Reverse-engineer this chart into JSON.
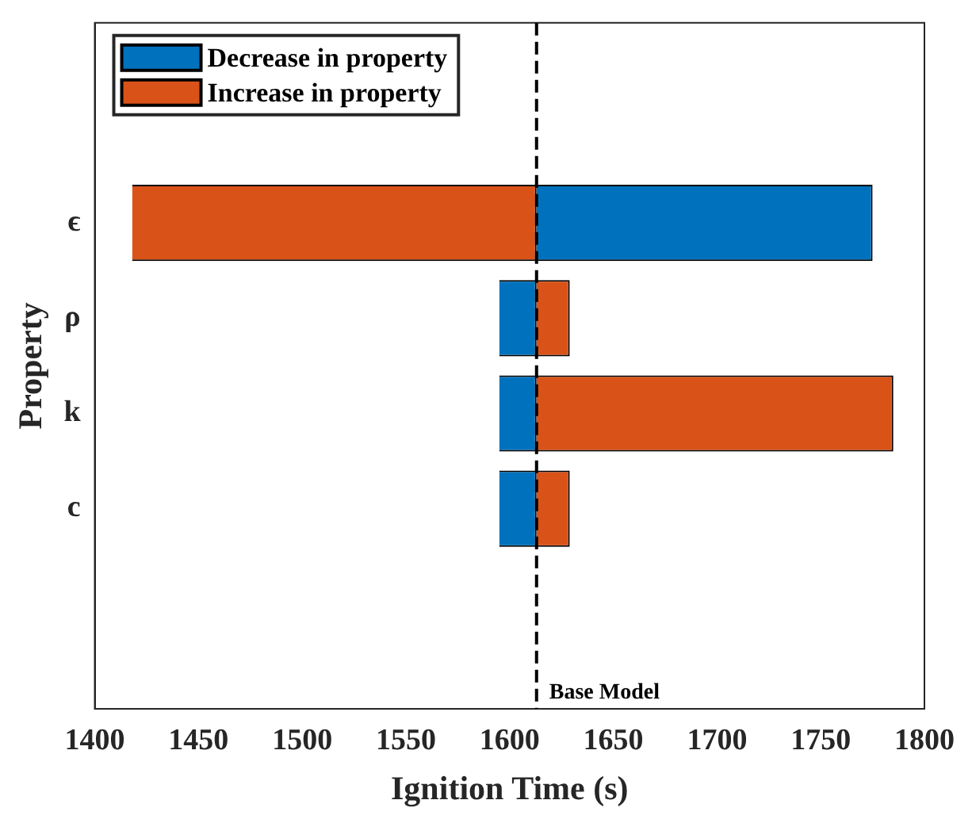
{
  "chart_data": {
    "type": "bar",
    "orientation": "horizontal",
    "xlabel": "Ignition Time (s)",
    "ylabel": "Property",
    "categories": [
      "ϵ",
      "ρ",
      "k",
      "c"
    ],
    "series": [
      {
        "name": "Decrease in property",
        "color": "#0072bd",
        "base": [
          1613,
          1613,
          1613,
          1613
        ],
        "values": [
          162,
          -18,
          -18,
          -18
        ]
      },
      {
        "name": "Increase in property",
        "color": "#d95319",
        "base": [
          1613,
          1613,
          1613,
          1613
        ],
        "values": [
          -195,
          16,
          172,
          16
        ]
      }
    ],
    "xlim": [
      1400,
      1800
    ],
    "xticks": [
      1400,
      1450,
      1500,
      1550,
      1600,
      1650,
      1700,
      1750,
      1800
    ],
    "ref_lines": [
      {
        "axis": "x",
        "value": 1613,
        "label": "Base Model",
        "color": "#000000",
        "line_style": "dashed"
      }
    ],
    "legend": "top left",
    "grid": false
  }
}
